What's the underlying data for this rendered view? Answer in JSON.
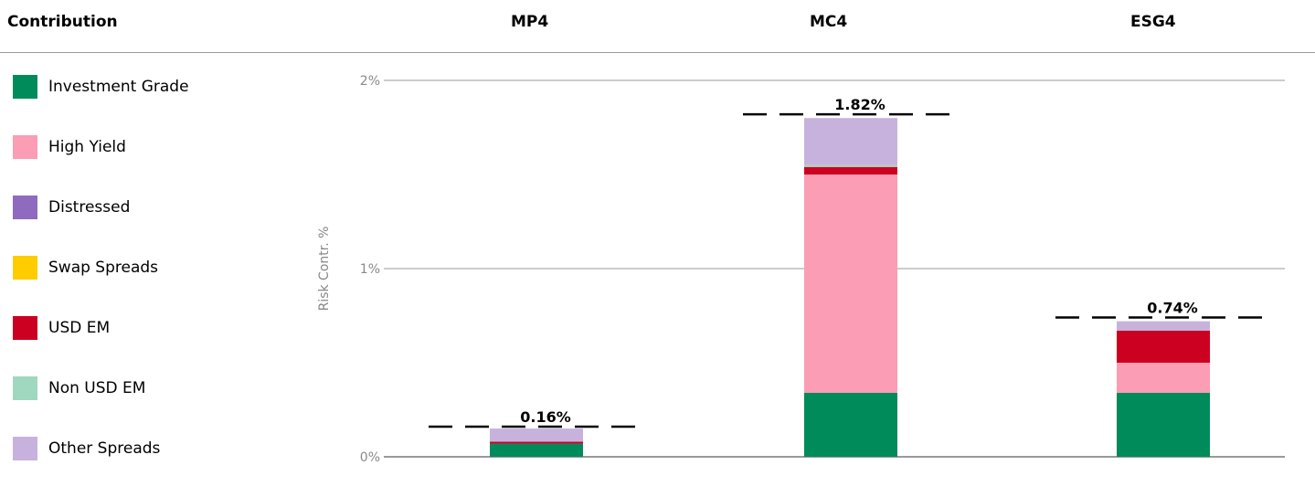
{
  "header": {
    "title": "Contribution",
    "col1": "MP4",
    "col2": "MC4",
    "col3": "ESG4"
  },
  "legend": [
    {
      "label": "Investment Grade",
      "color": "#008b5a"
    },
    {
      "label": "High Yield",
      "color": "#fb9db5"
    },
    {
      "label": "Distressed",
      "color": "#8e6bbe"
    },
    {
      "label": "Swap Spreads",
      "color": "#ffcc00"
    },
    {
      "label": "USD EM",
      "color": "#cc0020"
    },
    {
      "label": "Non USD EM",
      "color": "#9fd8bf"
    },
    {
      "label": "Other Spreads",
      "color": "#c7b2dd"
    }
  ],
  "chart_data": {
    "type": "bar",
    "stacked": true,
    "categories": [
      "MP4",
      "MC4",
      "ESG4"
    ],
    "ylabel": "Risk Contr. %",
    "ylim": [
      0,
      2
    ],
    "yticks": [
      {
        "value": 0,
        "label": "0%"
      },
      {
        "value": 1,
        "label": "1%"
      },
      {
        "value": 2,
        "label": "2%"
      }
    ],
    "grid": true,
    "series": [
      {
        "name": "Investment Grade",
        "color": "#008b5a",
        "values": [
          0.07,
          0.34,
          0.34
        ]
      },
      {
        "name": "High Yield",
        "color": "#fb9db5",
        "values": [
          0.0,
          1.16,
          0.16
        ]
      },
      {
        "name": "Distressed",
        "color": "#8e6bbe",
        "values": [
          0.0,
          0.0,
          0.0
        ]
      },
      {
        "name": "Swap Spreads",
        "color": "#ffcc00",
        "values": [
          0.0,
          0.0,
          0.0
        ]
      },
      {
        "name": "USD EM",
        "color": "#cc0020",
        "values": [
          0.01,
          0.04,
          0.17
        ]
      },
      {
        "name": "Non USD EM",
        "color": "#9fd8bf",
        "values": [
          0.0,
          0.01,
          0.0
        ]
      },
      {
        "name": "Other Spreads",
        "color": "#c7b2dd",
        "values": [
          0.07,
          0.25,
          0.05
        ]
      }
    ],
    "totals": [
      {
        "value": 0.16,
        "label": "0.16%"
      },
      {
        "value": 1.82,
        "label": "1.82%"
      },
      {
        "value": 0.74,
        "label": "0.74%"
      }
    ]
  }
}
